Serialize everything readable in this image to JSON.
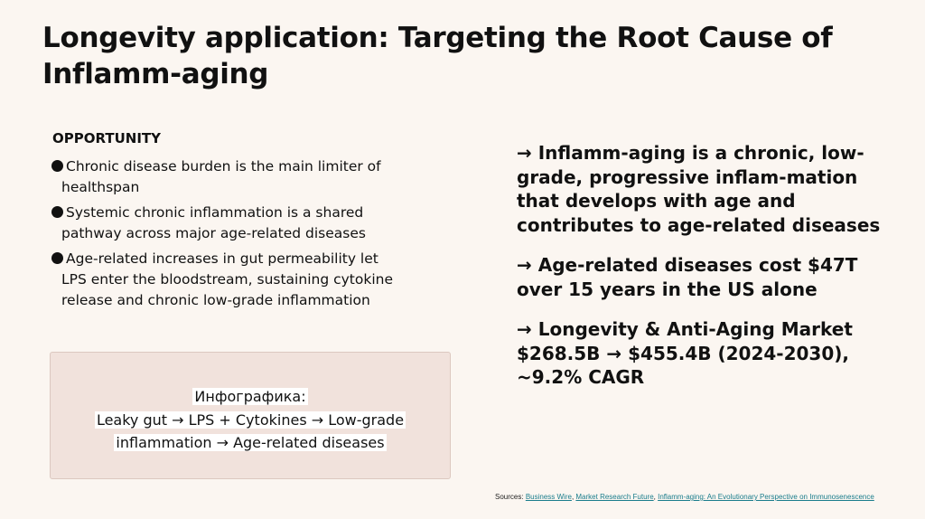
{
  "title": "Longevity application: Targeting the Root Cause of Inflamm-aging",
  "opportunity": {
    "heading": "OPPORTUNITY",
    "bullets": [
      "Chronic disease burden is the main limiter of healthspan",
      "Systemic chronic inflammation is a shared pathway across major age-related diseases",
      "Age-related increases in gut permeability let LPS enter the bloodstream, sustaining cytokine release and chronic low-grade inflammation"
    ]
  },
  "infographic": {
    "line1": "Инфографика:",
    "line2": "Leaky gut → LPS + Cytokines → Low-grade",
    "line3": "inflammation →  Age-related diseases"
  },
  "facts": [
    "→ Inflamm-aging is a chronic, low-grade, progressive inflam-mation that develops with age and contributes to age-related diseases",
    "→ Age-related diseases cost $47T over 15 years in the US alone",
    "→ Longevity & Anti-Aging Market $268.5B → $455.4B (2024-2030), ~9.2% CAGR"
  ],
  "sources": {
    "label": "Sources:",
    "links": [
      "Business Wire",
      "Market Research Future",
      "Inflamm-aging: An Evolutionary Perspective on Immunosenescence"
    ],
    "colors": {
      "link": "#1a7d8c"
    }
  },
  "colors": {
    "background": "#fbf6f1",
    "infobox": "#f1e2dc",
    "text": "#111111"
  }
}
